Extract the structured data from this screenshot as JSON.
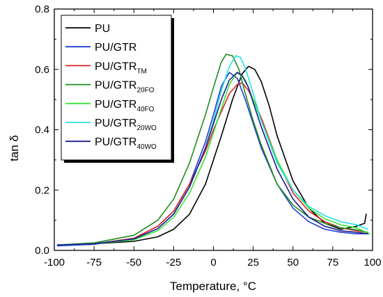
{
  "chart_data": {
    "type": "line",
    "xlabel": "Temperature, °C",
    "ylabel": "tan δ",
    "xlim": [
      -100,
      100
    ],
    "ylim": [
      0.0,
      0.8
    ],
    "x_ticks": [
      -100,
      -75,
      -50,
      -25,
      0,
      25,
      50,
      75,
      100
    ],
    "y_ticks": [
      0.0,
      0.2,
      0.4,
      0.6,
      0.8
    ],
    "x_tick_labels": [
      "-100",
      "-75",
      "-50",
      "-25",
      "0",
      "25",
      "50",
      "75",
      "100"
    ],
    "y_tick_labels": [
      "0.0",
      "0.2",
      "0.4",
      "0.6",
      "0.8"
    ],
    "legend_placement": "top-left",
    "series": [
      {
        "name": "PU",
        "name_main": "PU",
        "name_sub": "",
        "color": "#000000",
        "x": [
          -98,
          -75,
          -50,
          -35,
          -25,
          -15,
          -5,
          5,
          12,
          18,
          22,
          26,
          30,
          35,
          40,
          50,
          60,
          70,
          80,
          90,
          95,
          96
        ],
        "y": [
          0.018,
          0.022,
          0.03,
          0.045,
          0.07,
          0.12,
          0.22,
          0.38,
          0.5,
          0.585,
          0.61,
          0.6,
          0.56,
          0.48,
          0.38,
          0.23,
          0.14,
          0.09,
          0.07,
          0.08,
          0.09,
          0.12
        ]
      },
      {
        "name": "PU/GTR",
        "name_main": "PU/GTR",
        "name_sub": "",
        "color": "#1f3ad6",
        "x": [
          -98,
          -75,
          -50,
          -35,
          -25,
          -15,
          -5,
          0,
          5,
          10,
          15,
          20,
          25,
          30,
          40,
          50,
          60,
          70,
          80,
          90,
          97
        ],
        "y": [
          0.015,
          0.02,
          0.04,
          0.08,
          0.13,
          0.22,
          0.36,
          0.45,
          0.545,
          0.59,
          0.57,
          0.5,
          0.42,
          0.34,
          0.22,
          0.14,
          0.095,
          0.07,
          0.06,
          0.055,
          0.055
        ]
      },
      {
        "name": "PU/GTRTM",
        "name_main": "PU/GTR",
        "name_sub": "TM",
        "color": "#e02020",
        "x": [
          -98,
          -75,
          -50,
          -35,
          -25,
          -15,
          -5,
          0,
          5,
          10,
          15,
          18,
          22,
          25,
          30,
          40,
          50,
          60,
          70,
          80,
          90,
          97
        ],
        "y": [
          0.018,
          0.022,
          0.04,
          0.08,
          0.13,
          0.22,
          0.33,
          0.4,
          0.46,
          0.52,
          0.55,
          0.555,
          0.53,
          0.5,
          0.44,
          0.3,
          0.19,
          0.13,
          0.095,
          0.075,
          0.065,
          0.06
        ]
      },
      {
        "name": "PU/GTR20FO",
        "name_main": "PU/GTR",
        "name_sub": "20FO",
        "color": "#1e8c1e",
        "x": [
          -98,
          -75,
          -50,
          -35,
          -25,
          -15,
          -5,
          0,
          5,
          8,
          12,
          16,
          20,
          25,
          30,
          40,
          50,
          60,
          70,
          80,
          90,
          97
        ],
        "y": [
          0.018,
          0.025,
          0.05,
          0.1,
          0.17,
          0.29,
          0.45,
          0.54,
          0.625,
          0.65,
          0.645,
          0.6,
          0.52,
          0.43,
          0.35,
          0.22,
          0.15,
          0.11,
          0.09,
          0.075,
          0.068,
          0.06
        ]
      },
      {
        "name": "PU/GTR40FO",
        "name_main": "PU/GTR",
        "name_sub": "40FO",
        "color": "#33e633",
        "x": [
          -98,
          -75,
          -50,
          -35,
          -25,
          -15,
          -5,
          0,
          5,
          10,
          15,
          20,
          25,
          30,
          40,
          50,
          60,
          70,
          80,
          90,
          98
        ],
        "y": [
          0.018,
          0.022,
          0.035,
          0.065,
          0.11,
          0.19,
          0.31,
          0.39,
          0.47,
          0.55,
          0.59,
          0.565,
          0.5,
          0.43,
          0.3,
          0.2,
          0.14,
          0.105,
          0.085,
          0.075,
          0.055
        ]
      },
      {
        "name": "PU/GTR20WO",
        "name_main": "PU/GTR",
        "name_sub": "20WO",
        "color": "#22e0e0",
        "x": [
          -98,
          -75,
          -50,
          -35,
          -25,
          -15,
          -5,
          0,
          5,
          10,
          14,
          17,
          20,
          25,
          30,
          40,
          50,
          60,
          70,
          80,
          90,
          97
        ],
        "y": [
          0.018,
          0.022,
          0.038,
          0.072,
          0.12,
          0.21,
          0.34,
          0.43,
          0.53,
          0.61,
          0.645,
          0.64,
          0.605,
          0.52,
          0.43,
          0.29,
          0.2,
          0.145,
          0.115,
          0.095,
          0.085,
          0.07
        ]
      },
      {
        "name": "PU/GTR40WO",
        "name_main": "PU/GTR",
        "name_sub": "40WO",
        "color": "#1a1a8c",
        "x": [
          -98,
          -75,
          -50,
          -35,
          -25,
          -15,
          -5,
          0,
          5,
          10,
          15,
          18,
          22,
          25,
          30,
          40,
          50,
          60,
          70,
          80,
          90,
          97
        ],
        "y": [
          0.018,
          0.022,
          0.038,
          0.072,
          0.12,
          0.21,
          0.34,
          0.42,
          0.5,
          0.565,
          0.59,
          0.58,
          0.54,
          0.49,
          0.41,
          0.27,
          0.17,
          0.11,
          0.08,
          0.065,
          0.06,
          0.055
        ]
      }
    ]
  }
}
